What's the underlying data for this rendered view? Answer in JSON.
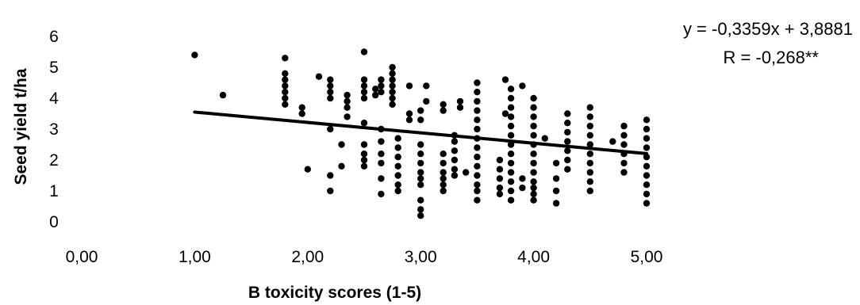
{
  "chart_data": {
    "type": "scatter",
    "title": "",
    "xlabel": "B toxicity scores (1-5)",
    "ylabel": "Seed yield t/ha",
    "xlim": [
      0,
      5
    ],
    "ylim": [
      0,
      6
    ],
    "x_ticks": [
      "0,00",
      "1,00",
      "2,00",
      "3,00",
      "4,00",
      "5,00"
    ],
    "y_ticks": [
      "0",
      "1",
      "2",
      "3",
      "4",
      "5",
      "6"
    ],
    "grid": false,
    "annotations": {
      "equation": "y = -0,3359x + 3,8881",
      "r_value": "R = -0,268**"
    },
    "trendline": {
      "slope": -0.3359,
      "intercept": 3.8881,
      "x_range": [
        1,
        5
      ]
    },
    "series": [
      {
        "points": [
          [
            1.0,
            5.4
          ],
          [
            1.25,
            4.1
          ],
          [
            1.8,
            5.3
          ],
          [
            1.8,
            4.8
          ],
          [
            1.8,
            4.6
          ],
          [
            1.8,
            4.4
          ],
          [
            1.8,
            4.2
          ],
          [
            1.8,
            4.0
          ],
          [
            1.8,
            3.8
          ],
          [
            1.95,
            3.7
          ],
          [
            1.95,
            3.5
          ],
          [
            2.0,
            1.7
          ],
          [
            2.1,
            4.7
          ],
          [
            2.2,
            4.6
          ],
          [
            2.2,
            4.4
          ],
          [
            2.2,
            4.2
          ],
          [
            2.2,
            4.0
          ],
          [
            2.2,
            3.0
          ],
          [
            2.2,
            1.5
          ],
          [
            2.2,
            1.0
          ],
          [
            2.3,
            2.5
          ],
          [
            2.3,
            1.8
          ],
          [
            2.35,
            4.1
          ],
          [
            2.35,
            3.9
          ],
          [
            2.35,
            3.7
          ],
          [
            2.35,
            3.4
          ],
          [
            2.5,
            5.5
          ],
          [
            2.5,
            4.6
          ],
          [
            2.5,
            4.4
          ],
          [
            2.5,
            4.2
          ],
          [
            2.5,
            4.0
          ],
          [
            2.5,
            3.2
          ],
          [
            2.5,
            2.5
          ],
          [
            2.5,
            2.2
          ],
          [
            2.5,
            2.0
          ],
          [
            2.5,
            1.8
          ],
          [
            2.6,
            4.3
          ],
          [
            2.6,
            4.1
          ],
          [
            2.65,
            4.6
          ],
          [
            2.65,
            4.4
          ],
          [
            2.65,
            4.2
          ],
          [
            2.65,
            3.0
          ],
          [
            2.65,
            2.6
          ],
          [
            2.65,
            2.2
          ],
          [
            2.65,
            1.9
          ],
          [
            2.65,
            1.4
          ],
          [
            2.65,
            0.9
          ],
          [
            2.75,
            5.0
          ],
          [
            2.75,
            4.8
          ],
          [
            2.75,
            4.6
          ],
          [
            2.75,
            4.4
          ],
          [
            2.75,
            4.2
          ],
          [
            2.75,
            4.0
          ],
          [
            2.75,
            3.8
          ],
          [
            2.8,
            2.7
          ],
          [
            2.8,
            2.4
          ],
          [
            2.8,
            2.1
          ],
          [
            2.8,
            1.8
          ],
          [
            2.8,
            1.5
          ],
          [
            2.8,
            1.2
          ],
          [
            2.8,
            1.0
          ],
          [
            2.9,
            4.4
          ],
          [
            2.9,
            3.5
          ],
          [
            2.9,
            3.3
          ],
          [
            3.0,
            3.6
          ],
          [
            3.0,
            3.3
          ],
          [
            3.0,
            2.5
          ],
          [
            3.0,
            2.2
          ],
          [
            3.0,
            1.9
          ],
          [
            3.0,
            1.6
          ],
          [
            3.0,
            1.4
          ],
          [
            3.0,
            1.2
          ],
          [
            3.0,
            0.7
          ],
          [
            3.0,
            0.4
          ],
          [
            3.0,
            0.2
          ],
          [
            3.05,
            4.4
          ],
          [
            3.05,
            3.9
          ],
          [
            3.2,
            3.8
          ],
          [
            3.2,
            3.6
          ],
          [
            3.2,
            2.2
          ],
          [
            3.2,
            1.9
          ],
          [
            3.2,
            1.6
          ],
          [
            3.2,
            1.4
          ],
          [
            3.2,
            1.2
          ],
          [
            3.2,
            1.0
          ],
          [
            3.3,
            2.8
          ],
          [
            3.3,
            2.6
          ],
          [
            3.3,
            2.3
          ],
          [
            3.3,
            2.0
          ],
          [
            3.3,
            1.7
          ],
          [
            3.3,
            1.5
          ],
          [
            3.35,
            3.9
          ],
          [
            3.35,
            3.7
          ],
          [
            3.4,
            1.6
          ],
          [
            3.5,
            4.5
          ],
          [
            3.5,
            4.2
          ],
          [
            3.5,
            3.9
          ],
          [
            3.5,
            3.6
          ],
          [
            3.5,
            3.3
          ],
          [
            3.5,
            3.0
          ],
          [
            3.5,
            2.7
          ],
          [
            3.5,
            2.4
          ],
          [
            3.5,
            2.1
          ],
          [
            3.5,
            1.8
          ],
          [
            3.5,
            1.5
          ],
          [
            3.5,
            1.2
          ],
          [
            3.5,
            1.0
          ],
          [
            3.5,
            0.7
          ],
          [
            3.7,
            2.0
          ],
          [
            3.7,
            1.7
          ],
          [
            3.7,
            1.4
          ],
          [
            3.7,
            1.1
          ],
          [
            3.7,
            0.9
          ],
          [
            3.75,
            4.6
          ],
          [
            3.75,
            3.5
          ],
          [
            3.8,
            4.3
          ],
          [
            3.8,
            4.0
          ],
          [
            3.8,
            3.7
          ],
          [
            3.8,
            3.4
          ],
          [
            3.8,
            3.1
          ],
          [
            3.8,
            2.8
          ],
          [
            3.8,
            2.5
          ],
          [
            3.8,
            2.2
          ],
          [
            3.8,
            1.9
          ],
          [
            3.8,
            1.6
          ],
          [
            3.8,
            1.3
          ],
          [
            3.8,
            1.0
          ],
          [
            3.8,
            0.7
          ],
          [
            3.9,
            4.4
          ],
          [
            3.9,
            1.4
          ],
          [
            3.9,
            1.1
          ],
          [
            4.0,
            4.0
          ],
          [
            4.0,
            3.7
          ],
          [
            4.0,
            3.4
          ],
          [
            4.0,
            3.1
          ],
          [
            4.0,
            2.8
          ],
          [
            4.0,
            2.5
          ],
          [
            4.0,
            2.2
          ],
          [
            4.0,
            1.9
          ],
          [
            4.0,
            1.6
          ],
          [
            4.0,
            1.3
          ],
          [
            4.0,
            1.1
          ],
          [
            4.0,
            0.9
          ],
          [
            4.0,
            0.7
          ],
          [
            4.1,
            2.7
          ],
          [
            4.2,
            1.9
          ],
          [
            4.2,
            1.4
          ],
          [
            4.2,
            1.0
          ],
          [
            4.2,
            0.6
          ],
          [
            4.3,
            3.5
          ],
          [
            4.3,
            3.2
          ],
          [
            4.3,
            2.9
          ],
          [
            4.3,
            2.6
          ],
          [
            4.3,
            2.3
          ],
          [
            4.3,
            2.0
          ],
          [
            4.3,
            1.7
          ],
          [
            4.5,
            3.7
          ],
          [
            4.5,
            3.4
          ],
          [
            4.5,
            3.1
          ],
          [
            4.5,
            2.8
          ],
          [
            4.5,
            2.5
          ],
          [
            4.5,
            2.2
          ],
          [
            4.5,
            1.9
          ],
          [
            4.5,
            1.6
          ],
          [
            4.5,
            1.3
          ],
          [
            4.5,
            1.0
          ],
          [
            4.7,
            2.6
          ],
          [
            4.8,
            3.1
          ],
          [
            4.8,
            2.8
          ],
          [
            4.8,
            2.5
          ],
          [
            4.8,
            2.2
          ],
          [
            4.8,
            1.9
          ],
          [
            4.8,
            1.6
          ],
          [
            5.0,
            3.3
          ],
          [
            5.0,
            3.0
          ],
          [
            5.0,
            2.7
          ],
          [
            5.0,
            2.4
          ],
          [
            5.0,
            2.1
          ],
          [
            5.0,
            1.8
          ],
          [
            5.0,
            1.5
          ],
          [
            5.0,
            1.2
          ],
          [
            5.0,
            0.9
          ],
          [
            5.0,
            0.6
          ]
        ]
      }
    ]
  }
}
